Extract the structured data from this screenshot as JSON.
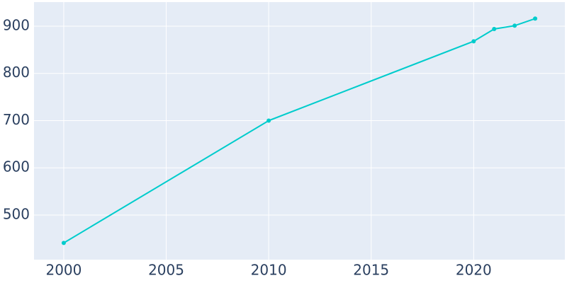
{
  "chart_data": {
    "type": "line",
    "x": [
      2000,
      2010,
      2020,
      2021,
      2022,
      2023
    ],
    "series": [
      {
        "color": "#00cccc",
        "values": [
          441,
          700,
          868,
          894,
          901,
          916
        ]
      }
    ],
    "xlim": [
      1998.55,
      2024.45
    ],
    "xticks": [
      2000,
      2005,
      2010,
      2015,
      2020
    ],
    "ylim": [
      405.6,
      950.9
    ],
    "yticks": [
      500,
      600,
      700,
      800,
      900
    ],
    "grid": true
  }
}
